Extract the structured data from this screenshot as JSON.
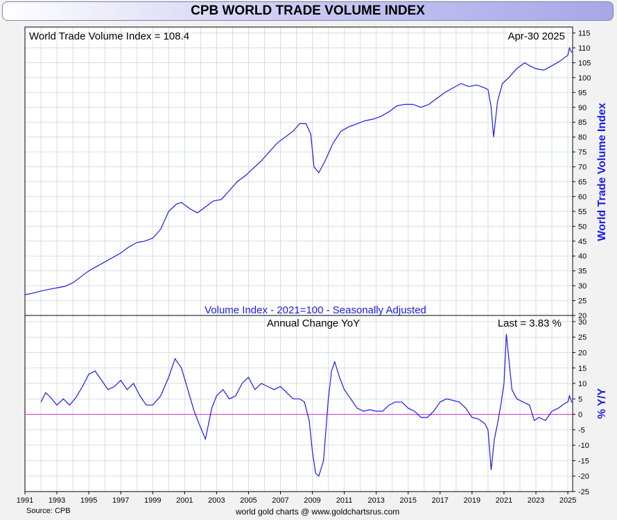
{
  "header": {
    "title": "CPB WORLD TRADE VOLUME INDEX"
  },
  "footer": {
    "source": "Source: CPB",
    "credit": "world gold charts @ www.goldchartsrus.com"
  },
  "colors": {
    "line": "#1a1ae6",
    "zero_line": "#cc33cc",
    "axis_title": "#1a1ae6",
    "grid": "#d6dde6",
    "plot_bg": "#ffffff"
  },
  "chart_data": [
    {
      "type": "line",
      "title": "World Trade Volume Index = 108.4",
      "date_label": "Apr-30  2025",
      "subtitle": "Volume Index - 2021=100 - Seasonally Adjusted",
      "ylabel": "World Trade Volume Index",
      "ylim": [
        20,
        117
      ],
      "yticks": [
        20,
        25,
        30,
        35,
        40,
        45,
        50,
        55,
        60,
        65,
        70,
        75,
        80,
        85,
        90,
        95,
        100,
        105,
        110,
        115
      ],
      "grid": true,
      "series": [
        {
          "x": [
            1991.0,
            1991.5,
            1992.0,
            1992.5,
            1993.0,
            1993.5,
            1994.0,
            1994.5,
            1995.0,
            1995.5,
            1996.0,
            1996.5,
            1997.0,
            1997.5,
            1998.0,
            1998.5,
            1999.0,
            1999.5,
            2000.0,
            2000.5,
            2000.8,
            2001.3,
            2001.8,
            2002.3,
            2002.8,
            2003.3,
            2003.8,
            2004.3,
            2004.8,
            2005.3,
            2005.8,
            2006.3,
            2006.8,
            2007.3,
            2007.8,
            2008.2,
            2008.6,
            2008.9,
            2009.1,
            2009.4,
            2009.8,
            2010.3,
            2010.8,
            2011.3,
            2011.8,
            2012.3,
            2012.8,
            2013.3,
            2013.8,
            2014.3,
            2014.8,
            2015.3,
            2015.8,
            2016.3,
            2016.8,
            2017.3,
            2017.8,
            2018.3,
            2018.8,
            2019.3,
            2019.8,
            2020.0,
            2020.2,
            2020.35,
            2020.6,
            2020.9,
            2021.3,
            2021.8,
            2022.3,
            2022.6,
            2023.0,
            2023.5,
            2024.0,
            2024.5,
            2025.0,
            2025.1,
            2025.25
          ],
          "y": [
            27.0,
            27.5,
            28.2,
            28.8,
            29.3,
            29.8,
            31.0,
            33.0,
            35.0,
            36.5,
            38.0,
            39.5,
            41.0,
            43.0,
            44.5,
            45.0,
            46.0,
            49.0,
            55.0,
            57.5,
            58.0,
            56.0,
            54.5,
            56.5,
            58.5,
            59.0,
            62.0,
            65.0,
            67.0,
            69.5,
            72.0,
            75.0,
            78.0,
            80.0,
            82.0,
            84.5,
            84.5,
            81.0,
            70.0,
            68.0,
            72.0,
            78.0,
            82.0,
            83.5,
            84.5,
            85.5,
            86.0,
            87.0,
            88.5,
            90.5,
            91.0,
            91.0,
            90.0,
            91.0,
            93.0,
            95.0,
            96.5,
            98.0,
            97.0,
            97.5,
            96.5,
            96.0,
            90.0,
            80.0,
            92.0,
            98.0,
            100.0,
            103.0,
            105.0,
            104.0,
            103.0,
            102.5,
            104.0,
            105.5,
            107.5,
            110.0,
            108.4
          ]
        }
      ]
    },
    {
      "type": "line",
      "title": "Annual Change YoY",
      "last_label": "Last = 3.83 %",
      "ylabel": "% Y/Y",
      "ylim": [
        -25,
        32
      ],
      "yticks": [
        -25,
        -20,
        -15,
        -10,
        -5,
        0,
        5,
        10,
        15,
        20,
        25,
        30
      ],
      "xticks": [
        "1991",
        "1993",
        "1995",
        "1997",
        "1999",
        "2001",
        "2003",
        "2005",
        "2007",
        "2009",
        "2011",
        "2013",
        "2015",
        "2017",
        "2019",
        "2021",
        "2023",
        "2025"
      ],
      "xlim": [
        1991,
        2025.3
      ],
      "grid": true,
      "series": [
        {
          "x": [
            1992.0,
            1992.3,
            1992.6,
            1993.0,
            1993.4,
            1993.8,
            1994.2,
            1994.6,
            1995.0,
            1995.4,
            1995.8,
            1996.2,
            1996.6,
            1997.0,
            1997.4,
            1997.8,
            1998.2,
            1998.6,
            1999.0,
            1999.5,
            2000.0,
            2000.4,
            2000.8,
            2001.2,
            2001.6,
            2001.9,
            2002.3,
            2002.7,
            2003.0,
            2003.4,
            2003.8,
            2004.2,
            2004.6,
            2005.0,
            2005.4,
            2005.8,
            2006.2,
            2006.6,
            2007.0,
            2007.4,
            2007.8,
            2008.2,
            2008.5,
            2008.8,
            2009.0,
            2009.2,
            2009.4,
            2009.7,
            2010.0,
            2010.2,
            2010.4,
            2010.7,
            2011.0,
            2011.4,
            2011.8,
            2012.2,
            2012.6,
            2013.0,
            2013.4,
            2013.8,
            2014.2,
            2014.6,
            2015.0,
            2015.4,
            2015.8,
            2016.2,
            2016.6,
            2017.0,
            2017.4,
            2017.8,
            2018.2,
            2018.6,
            2019.0,
            2019.4,
            2019.8,
            2020.0,
            2020.2,
            2020.4,
            2020.6,
            2020.8,
            2021.0,
            2021.15,
            2021.3,
            2021.5,
            2021.8,
            2022.2,
            2022.6,
            2022.9,
            2023.2,
            2023.6,
            2024.0,
            2024.4,
            2024.8,
            2025.0,
            2025.1,
            2025.25
          ],
          "y": [
            4.0,
            7.0,
            5.5,
            3.0,
            5.0,
            3.0,
            5.5,
            9.0,
            13.0,
            14.0,
            11.0,
            8.0,
            9.0,
            11.0,
            8.0,
            10.0,
            6.0,
            3.0,
            3.0,
            6.0,
            12.0,
            18.0,
            15.0,
            8.0,
            1.0,
            -3.0,
            -8.0,
            2.0,
            6.0,
            8.0,
            5.0,
            6.0,
            10.0,
            12.0,
            8.0,
            10.0,
            9.0,
            8.0,
            9.0,
            7.0,
            5.0,
            5.0,
            4.0,
            -2.0,
            -12.0,
            -19.0,
            -20.0,
            -15.0,
            5.0,
            14.0,
            17.0,
            12.0,
            8.0,
            5.0,
            2.0,
            1.0,
            1.5,
            1.0,
            1.0,
            3.0,
            4.0,
            4.0,
            2.0,
            1.0,
            -1.0,
            -1.0,
            1.0,
            4.0,
            5.0,
            4.5,
            4.0,
            2.0,
            -1.0,
            -1.5,
            -3.0,
            -5.0,
            -18.0,
            -8.0,
            -3.0,
            3.0,
            10.0,
            26.0,
            18.0,
            8.0,
            5.0,
            4.0,
            3.0,
            -2.0,
            -1.0,
            -2.0,
            1.0,
            2.0,
            3.5,
            4.0,
            6.0,
            3.83
          ]
        }
      ]
    }
  ]
}
